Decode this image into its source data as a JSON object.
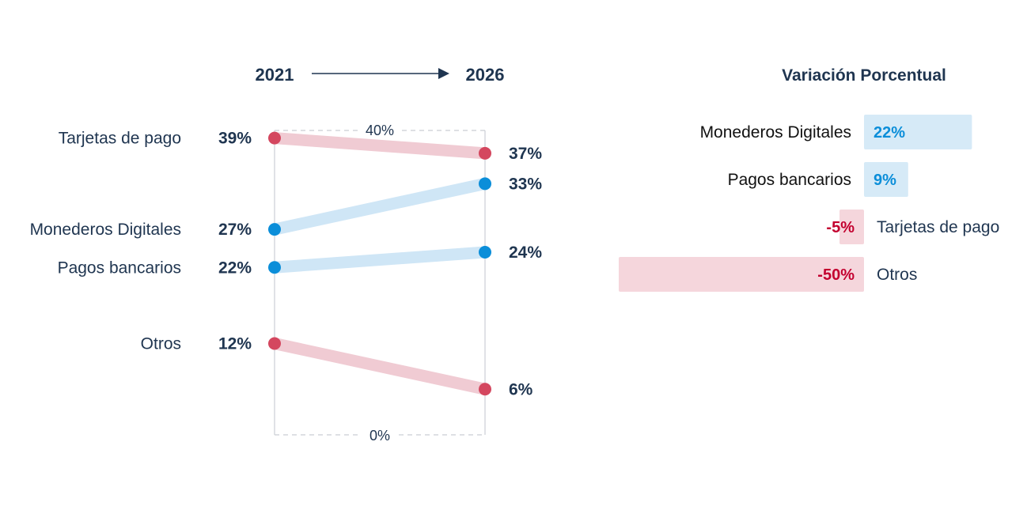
{
  "colors": {
    "decline_line": "#f0cbd3",
    "decline_dot": "#d4475f",
    "growth_line": "#cfe6f6",
    "growth_dot": "#0b8ed9",
    "text": "#1f3550",
    "negative_text": "#c3002f",
    "positive_text": "#0b8ed9",
    "positive_bar": "#d6eaf7",
    "negative_bar": "#f5d6dc"
  },
  "chart_data": [
    {
      "type": "line",
      "x": [
        "2021",
        "2026"
      ],
      "ylim": [
        0,
        40
      ],
      "scale_labels": {
        "top": "40%",
        "bottom": "0%"
      },
      "series": [
        {
          "name": "Tarjetas de pago",
          "values": [
            39,
            37
          ],
          "labels": [
            "39%",
            "37%"
          ],
          "trend": "down"
        },
        {
          "name": "Monederos Digitales",
          "values": [
            27,
            33
          ],
          "labels": [
            "27%",
            "33%"
          ],
          "trend": "up"
        },
        {
          "name": "Pagos bancarios",
          "values": [
            22,
            24
          ],
          "labels": [
            "22%",
            "24%"
          ],
          "trend": "up"
        },
        {
          "name": "Otros",
          "values": [
            12,
            6
          ],
          "labels": [
            "12%",
            "6%"
          ],
          "trend": "down"
        }
      ]
    },
    {
      "type": "bar",
      "title": "Variación Porcentual",
      "categories": [
        "Monederos Digitales",
        "Pagos bancarios",
        "Tarjetas de pago",
        "Otros"
      ],
      "values": [
        22,
        9,
        -5,
        -50
      ],
      "labels": [
        "22%",
        "9%",
        "-5%",
        "-50%"
      ]
    }
  ]
}
